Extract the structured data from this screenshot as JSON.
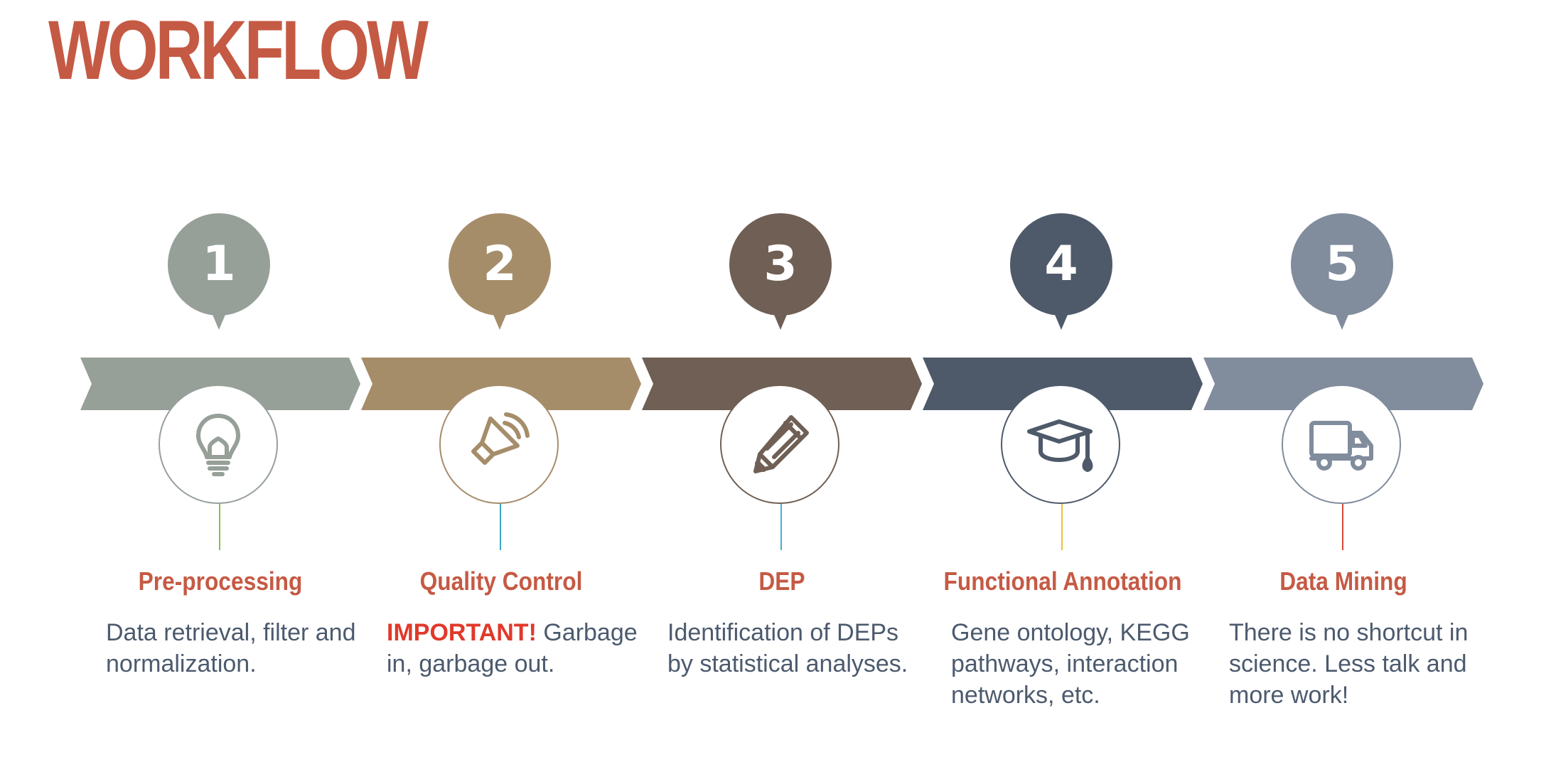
{
  "title": "WORKFLOW",
  "steps": [
    {
      "number": "1",
      "title": "Pre-processing",
      "highlight": "",
      "description": "Data retrieval, filter and normalization.",
      "icon": "lightbulb-icon",
      "color": "#96a099",
      "stem_color": "#8cbf3f"
    },
    {
      "number": "2",
      "title": "Quality Control",
      "highlight": "IMPORTANT!",
      "description": "Garbage in, garbage out.",
      "icon": "speaker-icon",
      "color": "#a68d6a",
      "stem_color": "#3aa9c4"
    },
    {
      "number": "3",
      "title": "DEP",
      "highlight": "",
      "description": "Identification of DEPs by statistical analyses.",
      "icon": "pencil-icon",
      "color": "#6f5f54",
      "stem_color": "#3fb0d8"
    },
    {
      "number": "4",
      "title": "Functional Annotation",
      "highlight": "",
      "description": "Gene ontology, KEGG pathways, interaction networks, etc.",
      "icon": "graduation-cap-icon",
      "color": "#4e5a6a",
      "stem_color": "#e8c238"
    },
    {
      "number": "5",
      "title": "Data Mining",
      "highlight": "",
      "description": "There is no shortcut in science. Less talk and more work!",
      "icon": "truck-icon",
      "color": "#818c9d",
      "stem_color": "#d9463a"
    }
  ]
}
